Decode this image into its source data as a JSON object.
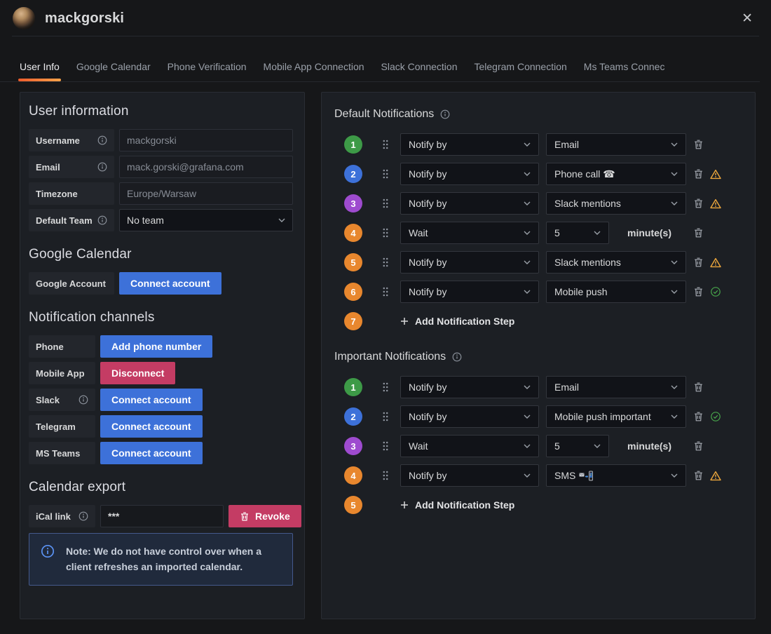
{
  "header": {
    "title": "mackgorski",
    "close_icon": "✕"
  },
  "tabs": {
    "items": [
      {
        "label": "User Info",
        "active": true
      },
      {
        "label": "Google Calendar",
        "active": false
      },
      {
        "label": "Phone Verification",
        "active": false
      },
      {
        "label": "Mobile App Connection",
        "active": false
      },
      {
        "label": "Slack Connection",
        "active": false
      },
      {
        "label": "Telegram Connection",
        "active": false
      },
      {
        "label": "Ms Teams Connec",
        "active": false
      }
    ]
  },
  "left": {
    "user_information": {
      "title": "User information",
      "fields": [
        {
          "label": "Username",
          "info": true,
          "value": "mackgorski",
          "control": "input",
          "disabled": true
        },
        {
          "label": "Email",
          "info": true,
          "value": "mack.gorski@grafana.com",
          "control": "input",
          "disabled": true
        },
        {
          "label": "Timezone",
          "info": false,
          "value": "Europe/Warsaw",
          "control": "input",
          "disabled": true
        },
        {
          "label": "Default Team",
          "info": true,
          "value": "No team",
          "control": "select",
          "disabled": false
        }
      ]
    },
    "google_calendar": {
      "title": "Google Calendar",
      "rows": [
        {
          "label": "Google Account",
          "info": false,
          "button": "Connect account",
          "variant": "primary"
        }
      ]
    },
    "notification_channels": {
      "title": "Notification channels",
      "rows": [
        {
          "label": "Phone",
          "info": false,
          "button": "Add phone number",
          "variant": "primary"
        },
        {
          "label": "Mobile App",
          "info": false,
          "button": "Disconnect",
          "variant": "destructive"
        },
        {
          "label": "Slack",
          "info": true,
          "button": "Connect account",
          "variant": "primary"
        },
        {
          "label": "Telegram",
          "info": false,
          "button": "Connect account",
          "variant": "primary"
        },
        {
          "label": "MS Teams",
          "info": false,
          "button": "Connect account",
          "variant": "primary"
        }
      ]
    },
    "calendar_export": {
      "title": "Calendar export",
      "label": "iCal link",
      "info": true,
      "value": "***",
      "button": "Revoke"
    },
    "note": {
      "text": "Note: We do not have control over when a client refreshes an imported calendar."
    }
  },
  "right": {
    "sections": [
      {
        "title": "Default Notifications",
        "steps": [
          {
            "num": "1",
            "color": "green",
            "type": "Notify by",
            "value": "Email",
            "icons": [
              "trash"
            ]
          },
          {
            "num": "2",
            "color": "blue",
            "type": "Notify by",
            "value": "Phone call ☎",
            "icons": [
              "trash",
              "warning"
            ]
          },
          {
            "num": "3",
            "color": "purple",
            "type": "Notify by",
            "value": "Slack mentions",
            "icons": [
              "trash",
              "warning"
            ]
          },
          {
            "num": "4",
            "color": "orange",
            "type": "Wait",
            "value": "5",
            "suffix": "minute(s)",
            "icons": [
              "trash"
            ]
          },
          {
            "num": "5",
            "color": "orange",
            "type": "Notify by",
            "value": "Slack mentions",
            "icons": [
              "trash",
              "warning"
            ]
          },
          {
            "num": "6",
            "color": "orange",
            "type": "Notify by",
            "value": "Mobile push",
            "icons": [
              "trash",
              "check"
            ]
          }
        ],
        "add_step": {
          "num": "7",
          "color": "orange",
          "label": "Add Notification Step"
        }
      },
      {
        "title": "Important Notifications",
        "steps": [
          {
            "num": "1",
            "color": "green",
            "type": "Notify by",
            "value": "Email",
            "icons": [
              "trash"
            ]
          },
          {
            "num": "2",
            "color": "blue",
            "type": "Notify by",
            "value": "Mobile push important",
            "icons": [
              "trash",
              "check"
            ]
          },
          {
            "num": "3",
            "color": "purple",
            "type": "Wait",
            "value": "5",
            "suffix": "minute(s)",
            "icons": [
              "trash"
            ]
          },
          {
            "num": "4",
            "color": "orange",
            "type": "Notify by",
            "value": "SMS",
            "value_emoji": "📲",
            "icons": [
              "trash",
              "warning"
            ]
          }
        ],
        "add_step": {
          "num": "5",
          "color": "orange",
          "label": "Add Notification Step"
        }
      }
    ]
  },
  "colors": {
    "accent_orange": "#f8a34a",
    "primary_blue": "#3d71d9",
    "destructive_red": "#c43c64",
    "step_green": "#3d9a47",
    "step_blue": "#3d71d9",
    "step_purple": "#9e4bcf",
    "step_orange": "#e8872e",
    "warning_amber": "#eda73c",
    "success_green": "#48a64b",
    "note_blue": "#5b93f5"
  }
}
